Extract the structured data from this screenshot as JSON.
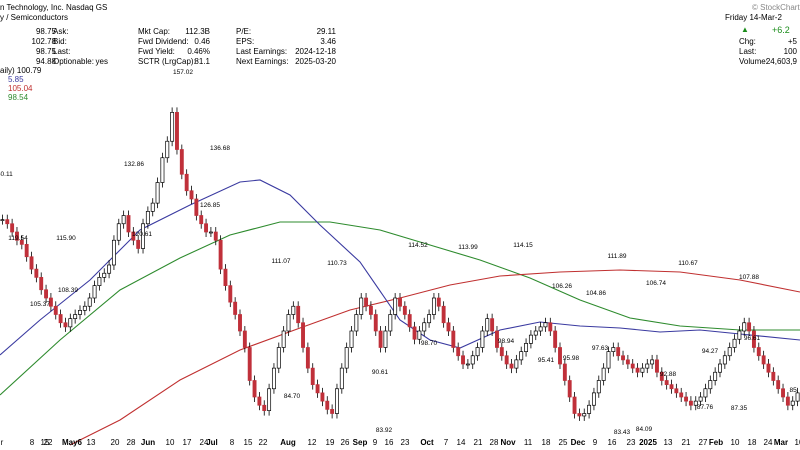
{
  "header": {
    "title": "n Technology, Inc. Nasdaq GS",
    "subtitle": "y / Semiconductors",
    "date": "Friday 14-Mar-2",
    "watermark": "© StockCharts",
    "change_arrow": "▲",
    "change_value": "+6.2",
    "col1": [
      {
        "k": "",
        "v": "98.75"
      },
      {
        "k": "",
        "v": "102.78"
      },
      {
        "k": "",
        "v": "98.75"
      },
      {
        "k": "",
        "v": "94.88"
      }
    ],
    "col2": [
      {
        "k": "Ask:",
        "v": ""
      },
      {
        "k": "Bid:",
        "v": ""
      },
      {
        "k": "Last:",
        "v": ""
      },
      {
        "k": "Optionable:",
        "v": "yes"
      }
    ],
    "col3": [
      {
        "k": "Mkt Cap:",
        "v": "112.3B"
      },
      {
        "k": "Fwd Dividend:",
        "v": "0.46"
      },
      {
        "k": "Fwd Yield:",
        "v": "0.46%"
      },
      {
        "k": "SCTR (LrgCap):",
        "v": "81.1"
      }
    ],
    "col4": [
      {
        "k": "P/E:",
        "v": "29.11"
      },
      {
        "k": "EPS:",
        "v": "3.46"
      },
      {
        "k": "Last Earnings:",
        "v": "2024-12-18"
      },
      {
        "k": "Next Earnings:",
        "v": "2025-03-20"
      }
    ],
    "col5": [
      {
        "k": "Chg:",
        "v": "+5"
      },
      {
        "k": "Last:",
        "v": "100"
      },
      {
        "k": "Volume:",
        "v": "24,603,9"
      }
    ],
    "legend": [
      {
        "text": "aily) 100.79",
        "color": "#000000"
      },
      {
        "text": "5.85",
        "color": "#3a3aa0"
      },
      {
        "text": "105.04",
        "color": "#c03030"
      },
      {
        "text": "98.54",
        "color": "#2e8b2e"
      }
    ]
  },
  "chart_data": {
    "type": "line",
    "ylim": [
      80,
      160
    ],
    "x_tick_labels": [
      "r",
      "8",
      "15",
      "22",
      "May6",
      "13",
      "20",
      "28",
      "Jun",
      "10",
      "17",
      "24",
      "Jul",
      "8",
      "15",
      "22",
      "Aug",
      "12",
      "19",
      "26",
      "Sep",
      "9",
      "16",
      "23",
      "Oct",
      "7",
      "14",
      "21",
      "28",
      "Nov",
      "11",
      "18",
      "25",
      "Dec",
      "9",
      "16",
      "23",
      "2025",
      "13",
      "21",
      "27",
      "Feb",
      "10",
      "18",
      "24",
      "Mar",
      "10"
    ],
    "price_labels": [
      {
        "label": "157.02",
        "value": 157.02
      },
      {
        "label": "136.68",
        "value": 136.68
      },
      {
        "label": "132.86",
        "value": 132.86
      },
      {
        "label": "126.85",
        "value": 126.85
      },
      {
        "label": "130.11",
        "value": 130.11
      },
      {
        "label": "120.61",
        "value": 120.61
      },
      {
        "label": "119.54",
        "value": 119.54
      },
      {
        "label": "115.90",
        "value": 115.9
      },
      {
        "label": "108.39",
        "value": 108.39
      },
      {
        "label": "105.37",
        "value": 105.37
      },
      {
        "label": "111.07",
        "value": 111.07
      },
      {
        "label": "110.73",
        "value": 110.73
      },
      {
        "label": "114.52",
        "value": 114.52
      },
      {
        "label": "113.99",
        "value": 113.99
      },
      {
        "label": "114.15",
        "value": 114.15
      },
      {
        "label": "111.89",
        "value": 111.89
      },
      {
        "label": "110.67",
        "value": 110.67
      },
      {
        "label": "107.88",
        "value": 107.88
      },
      {
        "label": "106.26",
        "value": 106.26
      },
      {
        "label": "104.86",
        "value": 104.86
      },
      {
        "label": "106.74",
        "value": 106.74
      },
      {
        "label": "84.70",
        "value": 84.7
      },
      {
        "label": "90.61",
        "value": 90.61
      },
      {
        "label": "83.92",
        "value": 83.92
      },
      {
        "label": "98.70",
        "value": 98.7
      },
      {
        "label": "98.94",
        "value": 98.94
      },
      {
        "label": "95.41",
        "value": 95.41
      },
      {
        "label": "95.98",
        "value": 95.98
      },
      {
        "label": "97.63",
        "value": 97.63
      },
      {
        "label": "83.43",
        "value": 83.43
      },
      {
        "label": "84.09",
        "value": 84.09
      },
      {
        "label": "92.88",
        "value": 92.88
      },
      {
        "label": "94.27",
        "value": 94.27
      },
      {
        "label": "96.61",
        "value": 96.61
      },
      {
        "label": "87.76",
        "value": 87.76
      },
      {
        "label": "87.35",
        "value": 87.35
      },
      {
        "label": "85.",
        "value": 85.0
      }
    ],
    "series": [
      {
        "values": [
          131,
          130,
          128,
          126,
          125,
          122,
          119,
          117,
          114,
          112,
          110,
          108,
          106,
          105,
          107,
          108,
          109,
          110,
          112,
          115,
          117,
          118,
          120,
          126,
          130,
          132,
          128,
          126,
          124,
          130,
          133,
          135,
          140,
          146,
          150,
          157,
          148,
          142,
          138,
          136,
          132,
          130,
          128,
          128,
          126,
          119,
          115,
          111,
          108,
          104,
          100,
          92,
          88,
          86,
          84.7,
          90,
          95,
          100,
          104,
          108,
          110,
          106,
          100,
          95,
          91,
          89,
          87,
          85,
          84,
          90,
          95,
          100,
          104,
          108,
          112,
          110,
          108,
          104,
          100,
          104,
          108,
          112,
          110,
          108,
          105,
          102,
          104,
          106,
          108,
          112,
          110,
          106,
          104,
          100,
          98,
          96,
          96,
          98,
          100,
          104,
          107,
          104,
          100,
          98,
          96,
          95,
          97,
          99,
          101,
          103,
          104,
          105,
          106,
          104,
          100,
          96,
          92,
          88,
          84,
          83.4,
          84,
          86,
          89,
          92,
          95,
          99,
          100,
          98,
          97,
          96,
          95,
          94,
          95,
          96,
          97,
          94,
          92,
          91,
          90,
          89,
          88,
          87,
          86,
          87,
          88,
          90,
          92,
          94,
          96,
          98,
          100,
          102,
          104,
          106,
          104,
          100,
          98,
          96,
          94,
          92,
          90,
          88,
          86,
          87,
          89
        ]
      },
      {
        "values": [
          null,
          null,
          null,
          null,
          null,
          null,
          null,
          null,
          null,
          null,
          null,
          null,
          null,
          null,
          null,
          null,
          null,
          null,
          null,
          null,
          106,
          107,
          108,
          110,
          112,
          113,
          114,
          115,
          116,
          117,
          118,
          119,
          120,
          121,
          122,
          123,
          124,
          125,
          126,
          127,
          128,
          128.5,
          129,
          129,
          128,
          127,
          125,
          123,
          121,
          119,
          117,
          114,
          112,
          110,
          108,
          106,
          104,
          103,
          102,
          101,
          100,
          99,
          98,
          97,
          96.5,
          96,
          96,
          96,
          96,
          96.5,
          97,
          97.5,
          98,
          98,
          98.5,
          99,
          99,
          99,
          99,
          99.2,
          99.5,
          100,
          100.3,
          100.5,
          100.8,
          101,
          101,
          101,
          100.8,
          100.5,
          100.2,
          100,
          99.8,
          99.5,
          99.2,
          99,
          99,
          99,
          99,
          99.2,
          99.5,
          99.8,
          100,
          100.2,
          100.5,
          100.8,
          101,
          101,
          101,
          100.8,
          100.5,
          100,
          99.5,
          99,
          98.5,
          98,
          97.5,
          97,
          96.8,
          96.5,
          96.3,
          96.2,
          96.3,
          96.5,
          96.7,
          97,
          97.3,
          97.5,
          97.7,
          98,
          98.2,
          98.4,
          98.6,
          98.8,
          99,
          99.2,
          99.4,
          99.6,
          99.8,
          100,
          100.2,
          100.4,
          100.6,
          100.8,
          101,
          101.2,
          101.4,
          101.6,
          101.8,
          102,
          102.2,
          102.4,
          102.6,
          102.8,
          103,
          103.2,
          103.4,
          103.6,
          103.8,
          104,
          104.2
        ]
      },
      {
        "values": [
          null,
          null,
          null,
          null,
          null,
          null,
          null,
          null,
          null,
          null,
          null,
          null,
          null,
          null,
          null,
          null,
          null,
          null,
          null,
          null,
          null,
          null,
          null,
          null,
          null,
          null,
          null,
          null,
          null,
          null,
          null,
          null,
          null,
          null,
          null,
          null,
          null,
          null,
          null,
          null,
          null,
          null,
          null,
          null,
          null,
          null,
          null,
          null,
          null,
          null,
          null,
          null,
          null,
          null,
          null,
          null,
          null,
          null,
          null,
          null,
          null,
          null,
          null,
          null,
          null,
          null,
          null,
          null,
          null,
          null,
          null,
          null,
          null,
          null,
          null,
          null,
          null,
          null,
          null,
          null,
          null,
          null,
          null,
          null,
          null,
          null,
          null,
          null,
          null,
          null,
          null,
          null,
          null,
          null,
          null,
          null,
          null,
          null,
          null,
          null,
          null,
          null,
          null,
          null,
          null,
          null,
          null,
          null,
          null,
          null,
          null,
          null,
          null,
          null,
          null,
          null,
          null,
          null,
          null,
          null,
          null,
          null,
          null,
          null,
          null,
          null,
          null,
          null,
          null,
          null,
          null,
          null,
          null,
          null,
          null,
          null,
          null,
          null,
          null,
          null,
          null,
          null,
          null,
          null,
          null,
          null,
          null,
          null,
          null,
          null,
          null,
          null,
          null,
          null,
          null,
          null,
          null,
          null,
          null,
          null
        ]
      }
    ]
  }
}
